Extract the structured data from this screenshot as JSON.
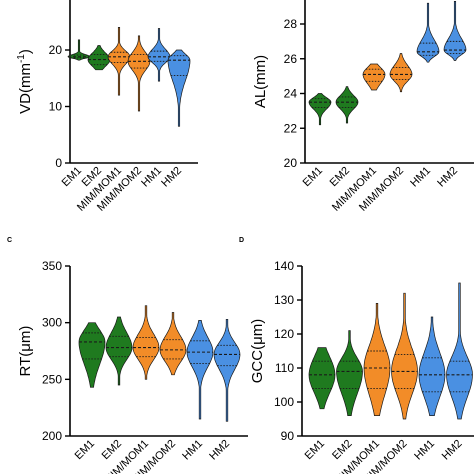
{
  "colors": {
    "EM": "#1f7a1f",
    "MIM": "#f28c28",
    "HM": "#4a90e2"
  },
  "chart_data": [
    {
      "panel": "",
      "type": "violin",
      "ylabel": "VD(mm-1)",
      "ylabel_main": "VD(mm",
      "ylabel_sup": "-1",
      "ylabel_close": ")",
      "ylim": [
        0,
        28
      ],
      "yticks": [
        0,
        10,
        20
      ],
      "categories": [
        "EM1",
        "EM2",
        "MIM/MOM1",
        "MIM/MOM2",
        "HM1",
        "HM2"
      ],
      "groups": [
        "EM",
        "EM",
        "MIM",
        "MIM",
        "HM",
        "HM"
      ],
      "values": [
        {
          "min": 18.2,
          "q1": 18.6,
          "median": 18.8,
          "q3": 19.1,
          "max": 21.8
        },
        {
          "min": 16.5,
          "q1": 17.4,
          "median": 18.3,
          "q3": 19.2,
          "max": 20.8
        },
        {
          "min": 12.0,
          "q1": 17.8,
          "median": 18.8,
          "q3": 19.6,
          "max": 24.0
        },
        {
          "min": 9.2,
          "q1": 16.8,
          "median": 18.0,
          "q3": 19.2,
          "max": 22.5
        },
        {
          "min": 14.5,
          "q1": 18.0,
          "median": 18.8,
          "q3": 19.8,
          "max": 23.8
        },
        {
          "min": 6.5,
          "q1": 15.5,
          "median": 18.2,
          "q3": 19.0,
          "max": 20.0
        }
      ]
    },
    {
      "panel": "",
      "type": "violin",
      "ylabel": "AL(mm)",
      "ylim": [
        20,
        29.5
      ],
      "yticks": [
        20,
        22,
        24,
        26,
        28
      ],
      "categories": [
        "EM1",
        "EM2",
        "MIM/MOM1",
        "MIM/MOM2",
        "HM1",
        "HM2"
      ],
      "groups": [
        "EM",
        "EM",
        "MIM",
        "MIM",
        "HM",
        "HM"
      ],
      "values": [
        {
          "min": 22.2,
          "q1": 23.2,
          "median": 23.5,
          "q3": 23.7,
          "max": 24.0
        },
        {
          "min": 22.3,
          "q1": 23.2,
          "median": 23.5,
          "q3": 23.8,
          "max": 24.4
        },
        {
          "min": 24.2,
          "q1": 24.7,
          "median": 25.1,
          "q3": 25.4,
          "max": 25.7
        },
        {
          "min": 24.1,
          "q1": 24.8,
          "median": 25.1,
          "q3": 25.5,
          "max": 26.3
        },
        {
          "min": 25.8,
          "q1": 26.2,
          "median": 26.4,
          "q3": 26.9,
          "max": 29.2
        },
        {
          "min": 25.9,
          "q1": 26.3,
          "median": 26.5,
          "q3": 27.0,
          "max": 29.3
        }
      ]
    },
    {
      "panel": "C",
      "type": "violin",
      "ylabel": "RT(μm)",
      "ylim": [
        200,
        350
      ],
      "yticks": [
        200,
        250,
        300,
        350
      ],
      "categories": [
        "EM1",
        "EM2",
        "MIM/MOM1",
        "MIM/MOM2",
        "HM1",
        "HM2"
      ],
      "groups": [
        "EM",
        "EM",
        "MIM",
        "MIM",
        "HM",
        "HM"
      ],
      "values": [
        {
          "min": 243,
          "q1": 268,
          "median": 283,
          "q3": 291,
          "max": 300
        },
        {
          "min": 245,
          "q1": 270,
          "median": 278,
          "q3": 288,
          "max": 305
        },
        {
          "min": 250,
          "q1": 270,
          "median": 278,
          "q3": 287,
          "max": 315
        },
        {
          "min": 254,
          "q1": 268,
          "median": 276,
          "q3": 285,
          "max": 309
        },
        {
          "min": 215,
          "q1": 264,
          "median": 274,
          "q3": 284,
          "max": 302
        },
        {
          "min": 213,
          "q1": 262,
          "median": 272,
          "q3": 280,
          "max": 303
        }
      ]
    },
    {
      "panel": "D",
      "type": "violin",
      "ylabel": "GCC(μm)",
      "ylim": [
        90,
        140
      ],
      "yticks": [
        90,
        100,
        110,
        120,
        130,
        140
      ],
      "categories": [
        "EM1",
        "EM2",
        "MIM/MOM1",
        "MIM/MOM2",
        "HM1",
        "HM2"
      ],
      "groups": [
        "EM",
        "EM",
        "MIM",
        "MIM",
        "HM",
        "HM"
      ],
      "values": [
        {
          "min": 98,
          "q1": 104,
          "median": 108,
          "q3": 112,
          "max": 116
        },
        {
          "min": 96,
          "q1": 104,
          "median": 109,
          "q3": 112,
          "max": 121
        },
        {
          "min": 96,
          "q1": 104,
          "median": 110,
          "q3": 115,
          "max": 129
        },
        {
          "min": 95,
          "q1": 104,
          "median": 109,
          "q3": 114,
          "max": 132
        },
        {
          "min": 96,
          "q1": 103,
          "median": 108,
          "q3": 113,
          "max": 125
        },
        {
          "min": 95,
          "q1": 103,
          "median": 108,
          "q3": 112,
          "max": 135
        }
      ]
    }
  ]
}
